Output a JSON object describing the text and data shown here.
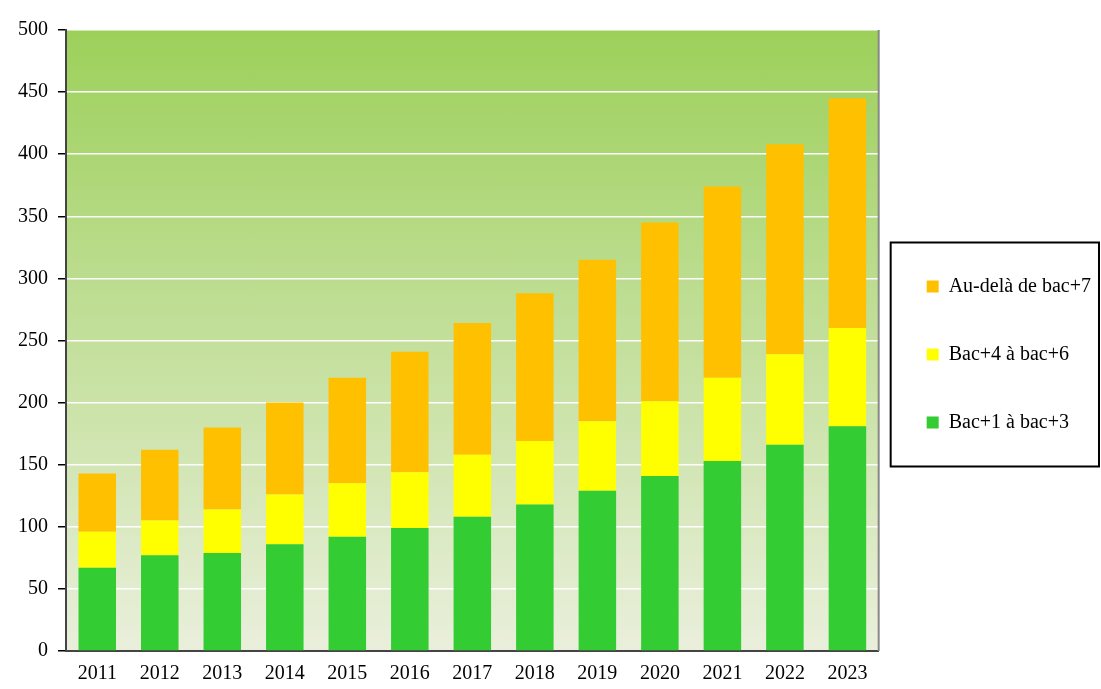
{
  "chart_data": {
    "type": "bar",
    "stacked": true,
    "categories": [
      "2011",
      "2012",
      "2013",
      "2014",
      "2015",
      "2016",
      "2017",
      "2018",
      "2019",
      "2020",
      "2021",
      "2022",
      "2023"
    ],
    "series": [
      {
        "name": "Bac+1 à bac+3",
        "color": "#33cc33",
        "values": [
          67,
          77,
          79,
          86,
          92,
          99,
          108,
          118,
          129,
          141,
          153,
          166,
          181
        ]
      },
      {
        "name": "Bac+4 à bac+6",
        "color": "#ffff00",
        "values": [
          29,
          28,
          35,
          40,
          43,
          45,
          50,
          51,
          56,
          60,
          67,
          73,
          79
        ]
      },
      {
        "name": "Au-delà de bac+7",
        "color": "#ffc000",
        "values": [
          47,
          57,
          66,
          74,
          85,
          97,
          106,
          119,
          130,
          144,
          154,
          169,
          185
        ]
      }
    ],
    "ylim": [
      0,
      500
    ],
    "yticks": [
      0,
      50,
      100,
      150,
      200,
      250,
      300,
      350,
      400,
      450,
      500
    ],
    "grid": "y",
    "legend": "right"
  }
}
